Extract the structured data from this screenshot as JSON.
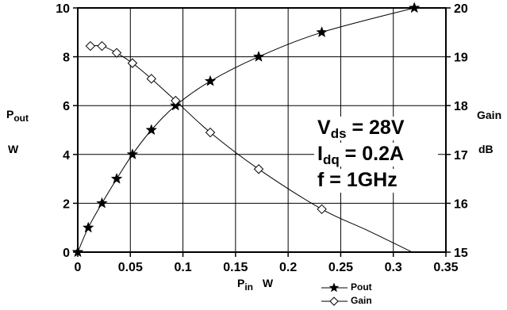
{
  "chart_data": {
    "type": "line",
    "xlabel": {
      "main": "P",
      "sub": "in",
      "unit": "W"
    },
    "ylabel_left": {
      "main": "P",
      "sub": "out",
      "unit": "W"
    },
    "ylabel_right": {
      "main": "Gain",
      "unit": "dB"
    },
    "xlim": [
      0,
      0.35
    ],
    "ylim_left": [
      0,
      10
    ],
    "ylim_right": [
      15,
      20
    ],
    "x_ticks": [
      "0",
      "0.05",
      "0.1",
      "0.15",
      "0.2",
      "0.25",
      "0.3",
      "0.35"
    ],
    "y_left_ticks": [
      "0",
      "2",
      "4",
      "6",
      "8",
      "10"
    ],
    "y_right_ticks": [
      "15",
      "16",
      "17",
      "18",
      "19",
      "20"
    ],
    "grid": true,
    "legend_position": "bottom-right",
    "series": [
      {
        "name": "Pout",
        "axis": "left",
        "marker": "star",
        "x": [
          0,
          0.01,
          0.023,
          0.037,
          0.052,
          0.07,
          0.093,
          0.126,
          0.172,
          0.232,
          0.32
        ],
        "y": [
          0,
          1,
          2,
          3,
          4,
          5,
          6,
          7,
          8,
          9,
          10
        ]
      },
      {
        "name": "Gain",
        "axis": "right",
        "marker": "diamond",
        "x": [
          0.012,
          0.023,
          0.037,
          0.052,
          0.07,
          0.093,
          0.126,
          0.172,
          0.232
        ],
        "y": [
          19.22,
          19.22,
          19.08,
          18.87,
          18.55,
          18.1,
          17.45,
          16.7,
          15.88
        ]
      }
    ],
    "annotations": [
      {
        "main": "V",
        "sub": "ds",
        "rest": " = 28V"
      },
      {
        "main": "I",
        "sub": "dq",
        "rest": " = 0.2A"
      },
      {
        "main": "f = 1GHz",
        "sub": "",
        "rest": ""
      }
    ]
  }
}
